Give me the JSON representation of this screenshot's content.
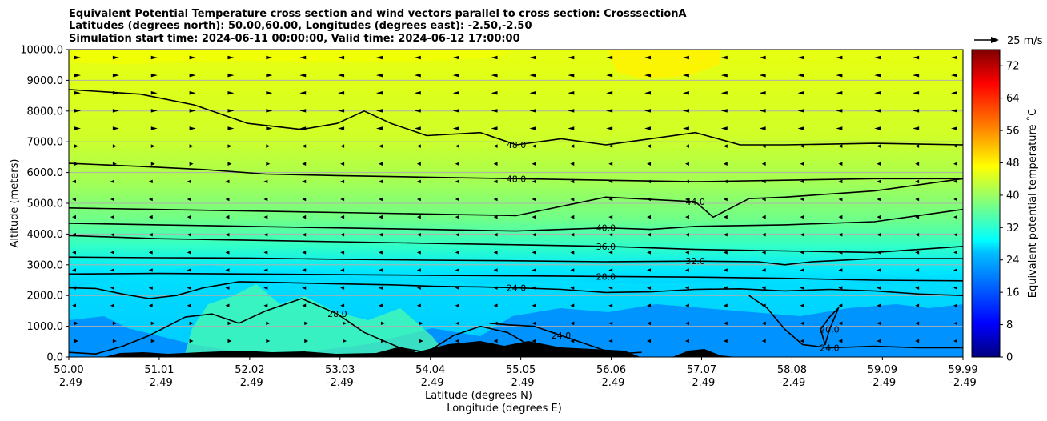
{
  "chart_data": {
    "type": "heatmap",
    "title_lines": [
      "Equivalent Potential Temperature cross section and wind vectors parallel to cross section: CrosssectionA",
      "Latitudes (degrees north): 50.00,60.00, Longitudes (degrees east): -2.50,-2.50",
      "Simulation start time: 2024-06-11 00:00:00, Valid time: 2024-06-12 17:00:00"
    ],
    "xlabel_lines": [
      "Latitude (degrees N)",
      "Longitude (degrees E)"
    ],
    "ylabel": "Altitude (meters)",
    "xlim": [
      50.0,
      59.99
    ],
    "ylim": [
      0,
      10000
    ],
    "x_ticks": [
      {
        "value": 50.0,
        "lat": "50.00",
        "lon": "-2.49"
      },
      {
        "value": 51.01,
        "lat": "51.01",
        "lon": "-2.49"
      },
      {
        "value": 52.02,
        "lat": "52.02",
        "lon": "-2.49"
      },
      {
        "value": 53.03,
        "lat": "53.03",
        "lon": "-2.49"
      },
      {
        "value": 54.04,
        "lat": "54.04",
        "lon": "-2.49"
      },
      {
        "value": 55.05,
        "lat": "55.05",
        "lon": "-2.49"
      },
      {
        "value": 56.06,
        "lat": "56.06",
        "lon": "-2.49"
      },
      {
        "value": 57.07,
        "lat": "57.07",
        "lon": "-2.49"
      },
      {
        "value": 58.08,
        "lat": "58.08",
        "lon": "-2.49"
      },
      {
        "value": 59.09,
        "lat": "59.09",
        "lon": "-2.49"
      },
      {
        "value": 59.99,
        "lat": "59.99",
        "lon": "-2.49"
      }
    ],
    "y_ticks": [
      {
        "value": 0,
        "label": "0.0"
      },
      {
        "value": 1000,
        "label": "1000.0"
      },
      {
        "value": 2000,
        "label": "2000.0"
      },
      {
        "value": 3000,
        "label": "3000.0"
      },
      {
        "value": 4000,
        "label": "4000.0"
      },
      {
        "value": 5000,
        "label": "5000.0"
      },
      {
        "value": 6000,
        "label": "6000.0"
      },
      {
        "value": 7000,
        "label": "7000.0"
      },
      {
        "value": 8000,
        "label": "8000.0"
      },
      {
        "value": 9000,
        "label": "9000.0"
      },
      {
        "value": 10000,
        "label": "10000.0"
      }
    ],
    "grid": "horizontal",
    "colorbar": {
      "label": "Equivalent potential temperature $^\\circ$C",
      "label_text": "Equivalent potential temperature ˚C",
      "min": 0,
      "max": 76,
      "ticks": [
        {
          "value": 0,
          "label": "0"
        },
        {
          "value": 8,
          "label": "8"
        },
        {
          "value": 16,
          "label": "16"
        },
        {
          "value": 24,
          "label": "24"
        },
        {
          "value": 32,
          "label": "32"
        },
        {
          "value": 40,
          "label": "40"
        },
        {
          "value": 48,
          "label": "48"
        },
        {
          "value": 56,
          "label": "56"
        },
        {
          "value": 64,
          "label": "64"
        },
        {
          "value": 72,
          "label": "72"
        }
      ],
      "colormap": "jet",
      "placement": "right"
    },
    "quiver_key": {
      "label": "25 m/s",
      "placement": "top-right"
    },
    "contours": [
      {
        "level": 24,
        "label": "24.0",
        "points": [
          [
            50.0,
            2250
          ],
          [
            50.3,
            2230
          ],
          [
            50.6,
            2050
          ],
          [
            50.9,
            1900
          ],
          [
            51.2,
            2000
          ],
          [
            51.5,
            2250
          ],
          [
            51.9,
            2450
          ],
          [
            52.4,
            2420
          ],
          [
            53.0,
            2380
          ],
          [
            53.6,
            2350
          ],
          [
            54.1,
            2300
          ],
          [
            54.6,
            2280
          ],
          [
            55.0,
            2250
          ],
          [
            55.5,
            2200
          ],
          [
            56.0,
            2100
          ],
          [
            56.5,
            2120
          ],
          [
            57.0,
            2200
          ],
          [
            57.5,
            2220
          ],
          [
            58.0,
            2150
          ],
          [
            58.5,
            2200
          ],
          [
            59.0,
            2150
          ],
          [
            59.5,
            2050
          ],
          [
            59.99,
            2000
          ]
        ]
      },
      {
        "level": 24,
        "label": "24.0",
        "points": [
          [
            54.7,
            1100
          ],
          [
            54.9,
            1050
          ],
          [
            55.2,
            1000
          ],
          [
            55.5,
            700
          ],
          [
            55.8,
            400
          ],
          [
            56.1,
            100
          ],
          [
            56.4,
            150
          ]
        ]
      },
      {
        "level": 24,
        "label": "24.0",
        "points": [
          [
            57.6,
            2000
          ],
          [
            57.8,
            1600
          ],
          [
            58.0,
            900
          ],
          [
            58.2,
            400
          ],
          [
            58.5,
            300
          ],
          [
            59.0,
            350
          ],
          [
            59.5,
            300
          ],
          [
            59.99,
            300
          ]
        ]
      },
      {
        "level": 20,
        "label": "20.0",
        "points": [
          [
            58.4,
            900
          ],
          [
            58.5,
            1300
          ],
          [
            58.6,
            1600
          ],
          [
            58.5,
            900
          ],
          [
            58.45,
            400
          ],
          [
            58.4,
            900
          ]
        ]
      },
      {
        "level": 28,
        "label": "28.0",
        "points": [
          [
            50.0,
            150
          ],
          [
            50.3,
            100
          ],
          [
            50.6,
            350
          ],
          [
            50.9,
            700
          ],
          [
            51.3,
            1300
          ],
          [
            51.6,
            1400
          ],
          [
            51.9,
            1100
          ],
          [
            52.2,
            1500
          ],
          [
            52.6,
            1900
          ],
          [
            53.0,
            1400
          ],
          [
            53.3,
            800
          ],
          [
            53.7,
            300
          ],
          [
            54.0,
            150
          ],
          [
            54.3,
            700
          ],
          [
            54.6,
            1000
          ],
          [
            54.9,
            800
          ],
          [
            55.2,
            300
          ],
          [
            55.6,
            100
          ]
        ]
      },
      {
        "level": 28,
        "label": "28.0",
        "points": [
          [
            50.0,
            2700
          ],
          [
            51.0,
            2720
          ],
          [
            52.0,
            2700
          ],
          [
            53.0,
            2680
          ],
          [
            54.0,
            2660
          ],
          [
            55.0,
            2640
          ],
          [
            56.0,
            2620
          ],
          [
            57.0,
            2600
          ],
          [
            58.0,
            2560
          ],
          [
            59.0,
            2500
          ],
          [
            59.99,
            2480
          ]
        ]
      },
      {
        "level": 32,
        "label": "32.0",
        "points": [
          [
            50.0,
            3250
          ],
          [
            51.0,
            3230
          ],
          [
            52.0,
            3220
          ],
          [
            53.0,
            3180
          ],
          [
            54.0,
            3150
          ],
          [
            55.0,
            3130
          ],
          [
            56.0,
            3100
          ],
          [
            57.0,
            3120
          ],
          [
            57.7,
            3100
          ],
          [
            58.0,
            3000
          ],
          [
            58.3,
            3100
          ],
          [
            59.0,
            3200
          ],
          [
            59.99,
            3200
          ]
        ]
      },
      {
        "level": 36,
        "label": "36.0",
        "points": [
          [
            50.0,
            3950
          ],
          [
            51.0,
            3850
          ],
          [
            52.0,
            3800
          ],
          [
            53.0,
            3750
          ],
          [
            54.0,
            3700
          ],
          [
            55.0,
            3650
          ],
          [
            56.0,
            3600
          ],
          [
            57.0,
            3500
          ],
          [
            58.0,
            3450
          ],
          [
            59.0,
            3400
          ],
          [
            59.99,
            3600
          ]
        ]
      },
      {
        "level": 40,
        "label": "40.0",
        "points": [
          [
            50.0,
            4350
          ],
          [
            51.0,
            4300
          ],
          [
            52.0,
            4250
          ],
          [
            53.0,
            4200
          ],
          [
            54.0,
            4150
          ],
          [
            55.0,
            4100
          ],
          [
            56.0,
            4200
          ],
          [
            56.5,
            4150
          ],
          [
            57.0,
            4250
          ],
          [
            58.0,
            4300
          ],
          [
            59.0,
            4400
          ],
          [
            59.99,
            4800
          ]
        ]
      },
      {
        "level": 44,
        "label": "44.0",
        "points": [
          [
            50.0,
            4850
          ],
          [
            51.0,
            4800
          ],
          [
            52.0,
            4750
          ],
          [
            53.0,
            4700
          ],
          [
            54.0,
            4650
          ],
          [
            55.0,
            4600
          ],
          [
            56.0,
            5200
          ],
          [
            57.0,
            5050
          ],
          [
            57.2,
            4550
          ],
          [
            57.6,
            5150
          ],
          [
            58.0,
            5200
          ],
          [
            59.0,
            5400
          ],
          [
            59.99,
            5800
          ]
        ]
      },
      {
        "level": 48,
        "label": "48.0",
        "points": [
          [
            50.0,
            8700
          ],
          [
            50.8,
            8550
          ],
          [
            51.4,
            8200
          ],
          [
            52.0,
            7600
          ],
          [
            52.6,
            7400
          ],
          [
            53.0,
            7600
          ],
          [
            53.3,
            8000
          ],
          [
            53.6,
            7600
          ],
          [
            54.0,
            7200
          ],
          [
            54.6,
            7300
          ],
          [
            55.0,
            6900
          ],
          [
            55.5,
            7100
          ],
          [
            56.0,
            6900
          ],
          [
            56.5,
            7100
          ],
          [
            57.0,
            7300
          ],
          [
            57.5,
            6900
          ],
          [
            58.0,
            6900
          ],
          [
            59.0,
            6950
          ],
          [
            59.99,
            6900
          ]
        ]
      },
      {
        "level": 48,
        "label": "48.0",
        "points": [
          [
            50.0,
            6300
          ],
          [
            50.8,
            6200
          ],
          [
            51.5,
            6100
          ],
          [
            52.2,
            5950
          ],
          [
            53.0,
            5900
          ],
          [
            54.0,
            5850
          ],
          [
            55.0,
            5800
          ],
          [
            56.0,
            5750
          ],
          [
            57.0,
            5700
          ],
          [
            58.0,
            5750
          ],
          [
            59.0,
            5800
          ],
          [
            59.99,
            5800
          ]
        ]
      }
    ]
  }
}
